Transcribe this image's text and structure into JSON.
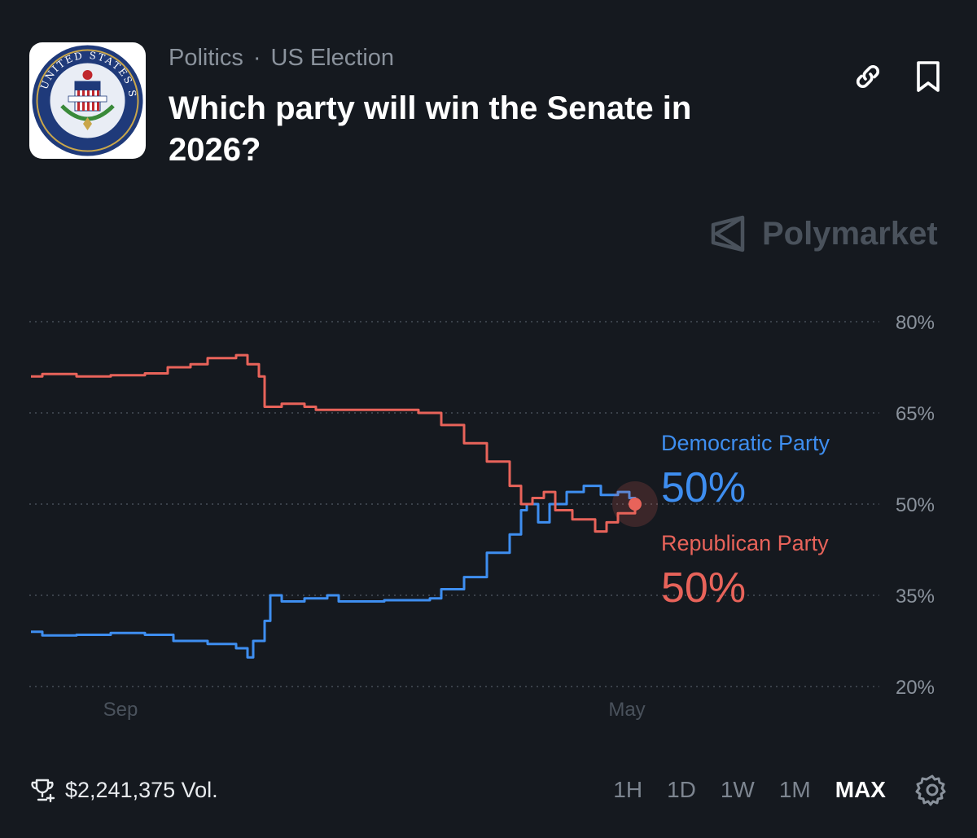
{
  "market": {
    "category": "Politics",
    "subcategory": "US Election",
    "separator": "·",
    "title": "Which party will win the Senate in 2026?",
    "logo_seal_text": "UNITED STATES SENATE E PLURIBUS UNUM"
  },
  "header_icons": [
    "link-icon",
    "bookmark-icon"
  ],
  "brand": {
    "name": "Polymarket"
  },
  "colors": {
    "background": "#15191f",
    "democratic": "#3e8ef0",
    "republican": "#e8635a",
    "gridline": "#3a414a",
    "muted_text": "#8a929c"
  },
  "chart_data": {
    "type": "line",
    "y_ticks": [
      "80%",
      "65%",
      "50%",
      "35%",
      "20%"
    ],
    "ylim": [
      20,
      80
    ],
    "x_ticks": [
      "Sep",
      "May"
    ],
    "grid": true,
    "series": [
      {
        "name": "Democratic Party",
        "current_label": "50%",
        "points": [
          [
            0,
            29
          ],
          [
            2,
            28.4
          ],
          [
            8,
            28.5
          ],
          [
            14,
            28.8
          ],
          [
            20,
            28.5
          ],
          [
            25,
            27.5
          ],
          [
            31,
            27
          ],
          [
            36,
            26.3
          ],
          [
            38,
            24.8
          ],
          [
            39,
            27.5
          ],
          [
            41,
            30.8
          ],
          [
            42,
            35
          ],
          [
            44,
            34
          ],
          [
            48,
            34.5
          ],
          [
            52,
            35
          ],
          [
            54,
            34
          ],
          [
            62,
            34.2
          ],
          [
            70,
            34.5
          ],
          [
            72,
            36
          ],
          [
            76,
            38
          ],
          [
            80,
            42
          ],
          [
            84,
            45
          ],
          [
            86,
            49
          ],
          [
            87,
            50
          ],
          [
            89,
            47
          ],
          [
            91,
            50
          ],
          [
            94,
            52
          ],
          [
            97,
            53
          ],
          [
            100,
            51.5
          ],
          [
            103,
            52
          ],
          [
            105,
            51
          ],
          [
            106,
            50
          ]
        ]
      },
      {
        "name": "Republican Party",
        "current_label": "50%",
        "points": [
          [
            0,
            71
          ],
          [
            2,
            71.4
          ],
          [
            8,
            71
          ],
          [
            14,
            71.2
          ],
          [
            20,
            71.5
          ],
          [
            24,
            72.5
          ],
          [
            28,
            73
          ],
          [
            31,
            74
          ],
          [
            36,
            74.5
          ],
          [
            38,
            73
          ],
          [
            40,
            71
          ],
          [
            41,
            66
          ],
          [
            44,
            66.5
          ],
          [
            48,
            66
          ],
          [
            50,
            65.5
          ],
          [
            54,
            65.5
          ],
          [
            62,
            65.5
          ],
          [
            68,
            65
          ],
          [
            72,
            63
          ],
          [
            76,
            60
          ],
          [
            80,
            57
          ],
          [
            84,
            53
          ],
          [
            86,
            50
          ],
          [
            88,
            51
          ],
          [
            90,
            52
          ],
          [
            92,
            49
          ],
          [
            95,
            47.5
          ],
          [
            99,
            45.5
          ],
          [
            101,
            47
          ],
          [
            103,
            48.5
          ],
          [
            106,
            50
          ]
        ]
      }
    ]
  },
  "footer": {
    "volume": "$2,241,375 Vol.",
    "ranges": [
      "1H",
      "1D",
      "1W",
      "1M",
      "MAX"
    ],
    "active_range": "MAX"
  }
}
